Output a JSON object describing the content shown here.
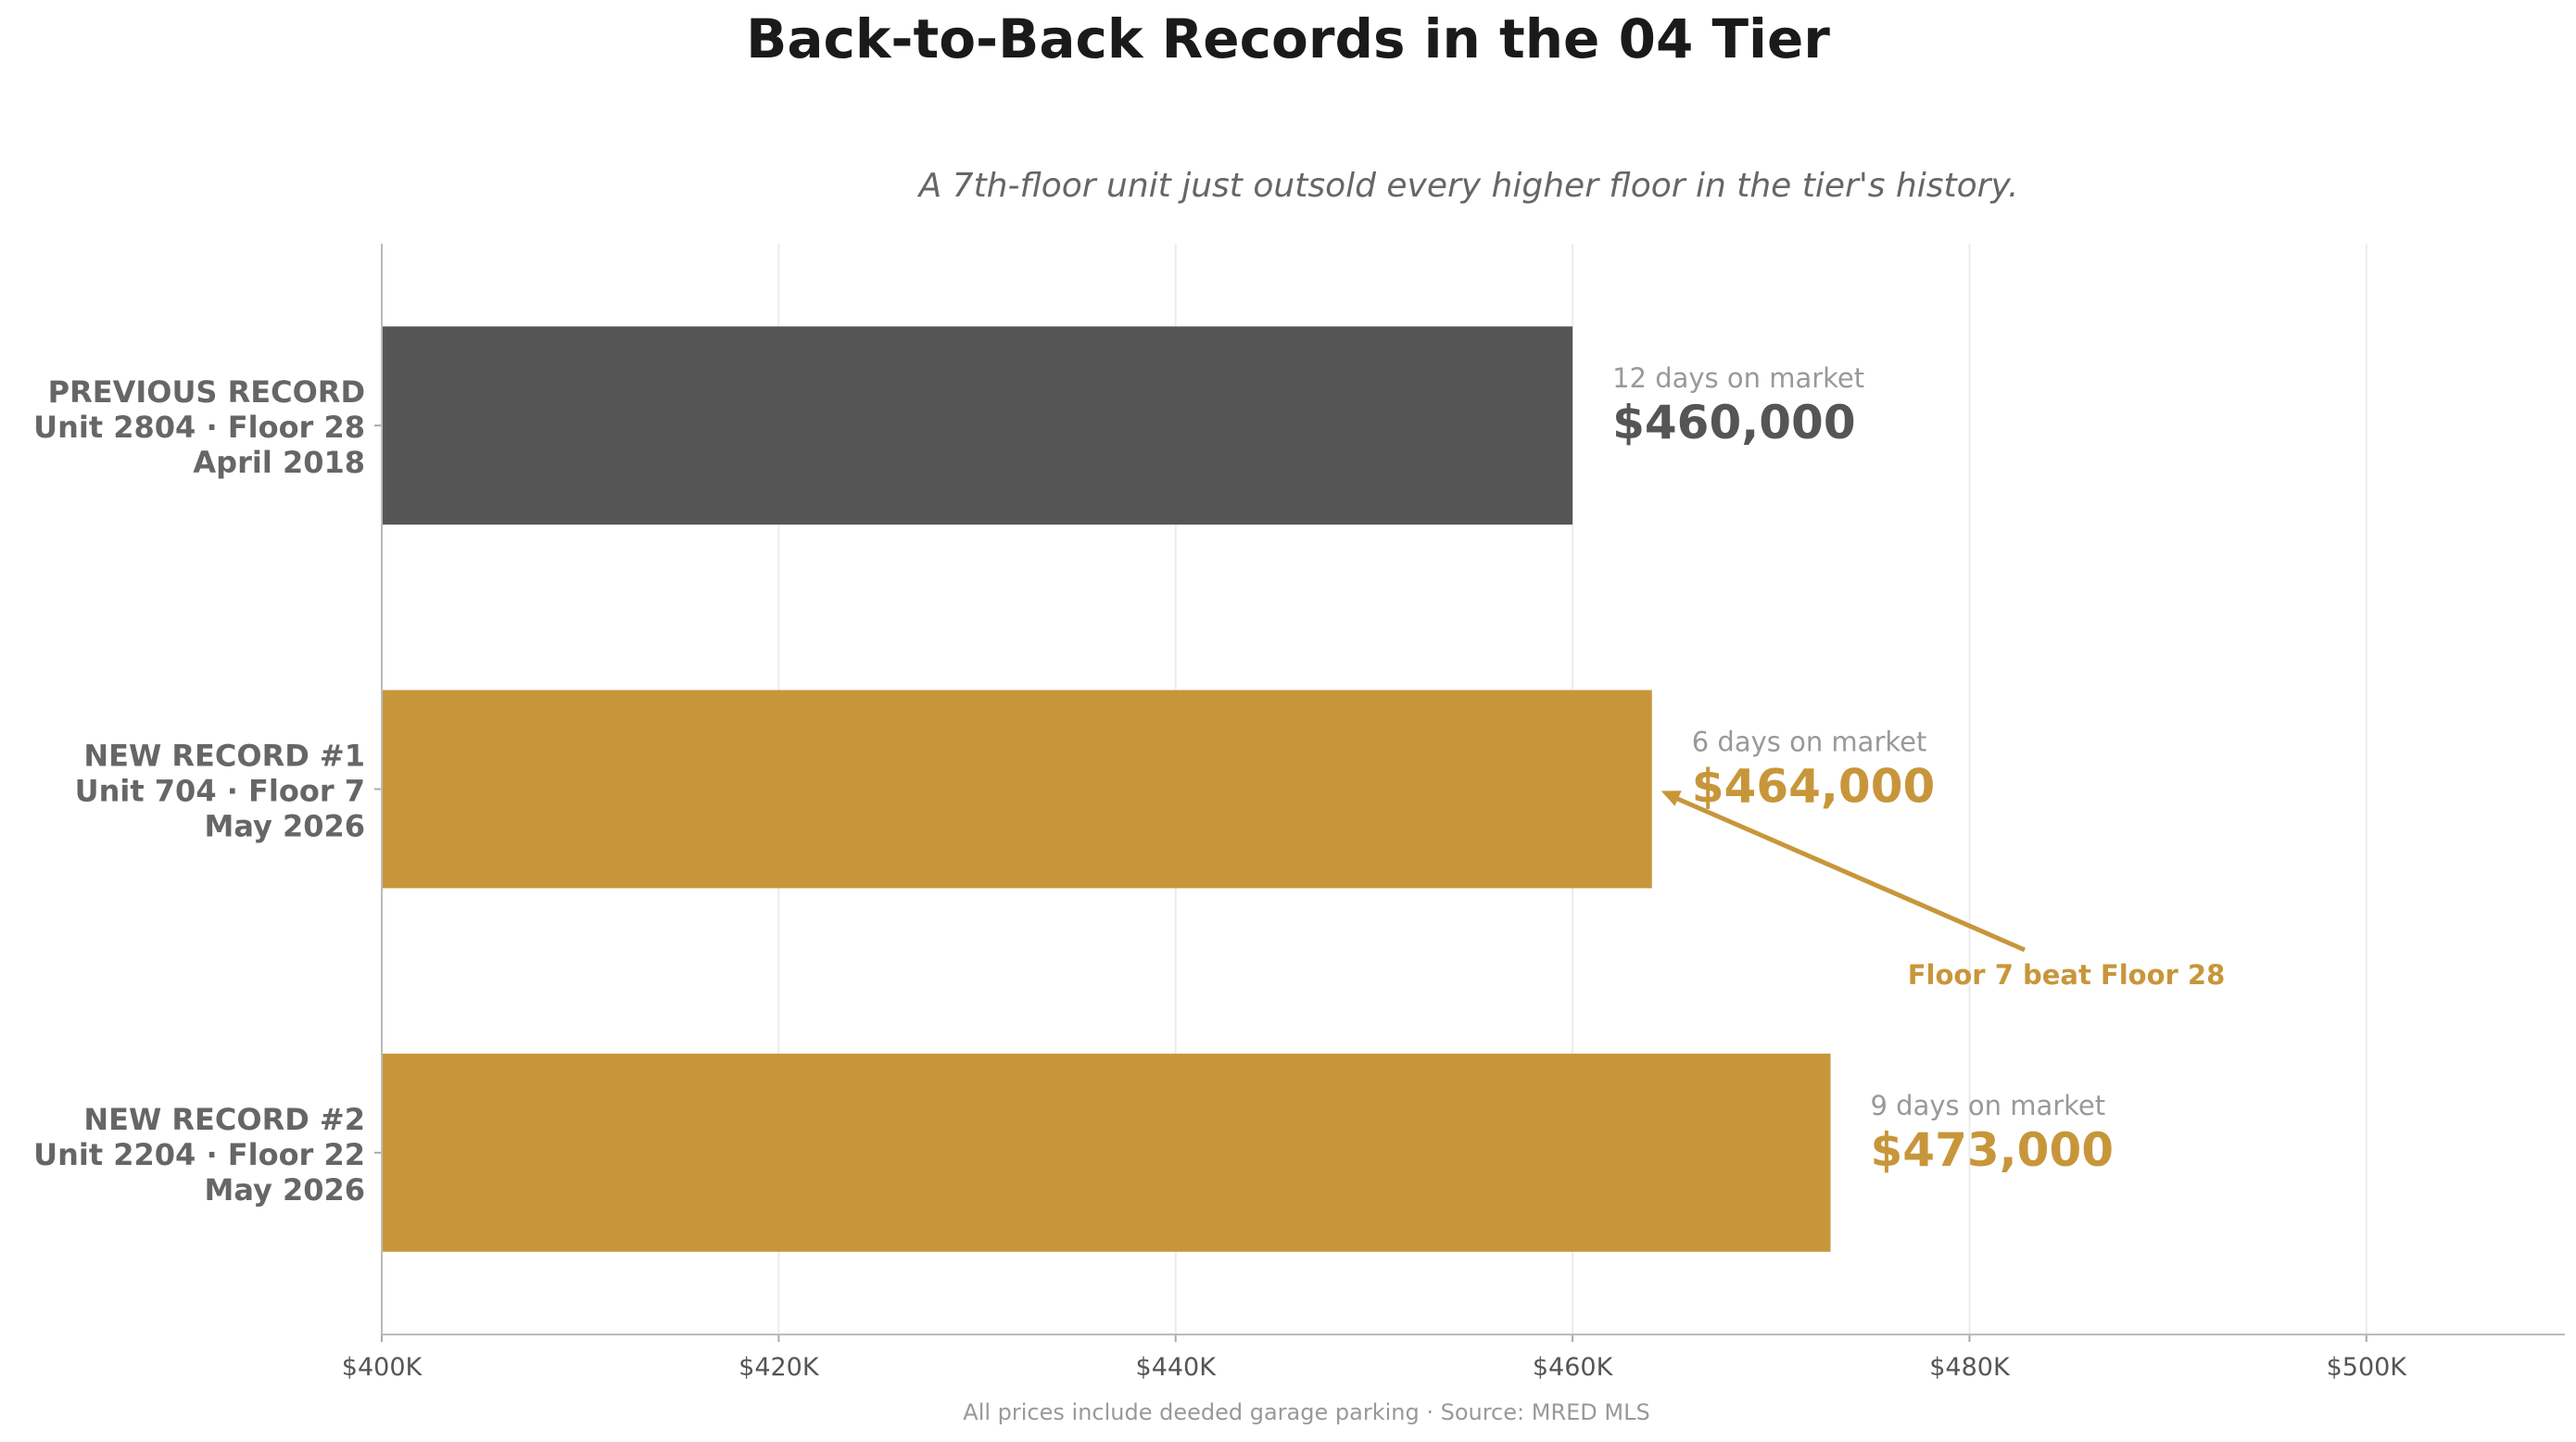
{
  "chart_data": {
    "type": "bar",
    "orientation": "horizontal",
    "title": "Back-to-Back Records in the 04 Tier",
    "subtitle": "A 7th-floor unit just outsold every higher floor in the tier's history.",
    "footnote": "All prices include deeded garage parking · Source: MRED MLS",
    "xlim": [
      400000,
      510000
    ],
    "x_ticks": [
      400000,
      420000,
      440000,
      460000,
      480000,
      500000
    ],
    "x_tick_labels": [
      "$400K",
      "$420K",
      "$440K",
      "$460K",
      "$480K",
      "$500K"
    ],
    "grid": "vertical",
    "categories": [
      {
        "line1": "PREVIOUS RECORD",
        "line2": "Unit 2804 · Floor 28",
        "line3": "April 2018",
        "value": 460000,
        "value_label": "$460,000",
        "days_label": "12 days on market",
        "color": "#555555"
      },
      {
        "line1": "NEW RECORD #1",
        "line2": "Unit 704 · Floor 7",
        "line3": "May 2026",
        "value": 464000,
        "value_label": "$464,000",
        "days_label": "6 days on market",
        "color": "#C8963A"
      },
      {
        "line1": "NEW RECORD #2",
        "line2": "Unit 2204 · Floor 22",
        "line3": "May 2026",
        "value": 473000,
        "value_label": "$473,000",
        "days_label": "9 days on market",
        "color": "#C8963A"
      }
    ],
    "annotation": {
      "text": "Floor 7 beat Floor 28",
      "target_category": 1,
      "color": "#C8963A"
    }
  }
}
